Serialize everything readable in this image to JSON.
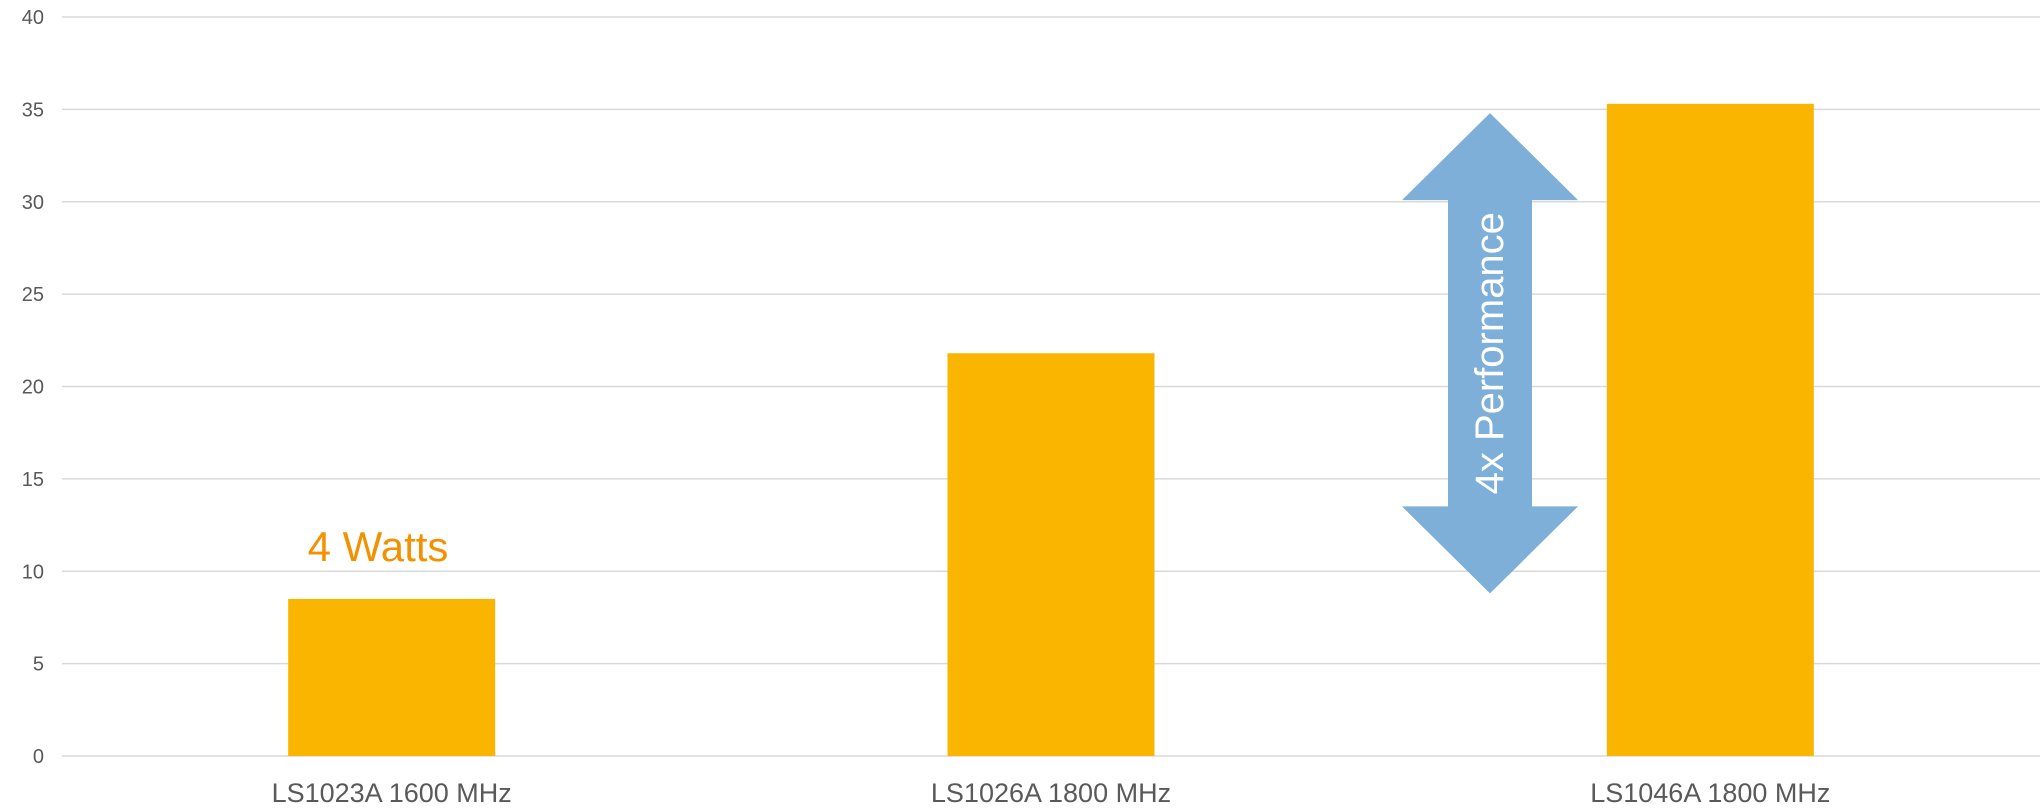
{
  "chart_data": {
    "type": "bar",
    "categories": [
      "LS1023A 1600 MHz",
      "LS1026A 1800 MHz",
      "LS1046A 1800 MHz"
    ],
    "values": [
      8.5,
      21.8,
      35.3
    ],
    "title": "",
    "xlabel": "",
    "ylabel": "",
    "ylim": [
      0,
      40
    ],
    "yticks": [
      0,
      5,
      10,
      15,
      20,
      25,
      30,
      35,
      40
    ],
    "grid": true,
    "legend": "none",
    "annotations": [
      {
        "text": "4 Watts",
        "category": "LS1023A 1600 MHz"
      },
      {
        "text": "4x Performance",
        "shape": "double-arrow",
        "from": 8.8,
        "to": 34.8,
        "category": "LS1046A 1800 MHz"
      }
    ]
  },
  "colors": {
    "bar": "#F9B500",
    "arrow": "#7DAFD9",
    "watts_text": "#F39200",
    "grid": "#D9D9D9",
    "axis_text": "#595959"
  }
}
